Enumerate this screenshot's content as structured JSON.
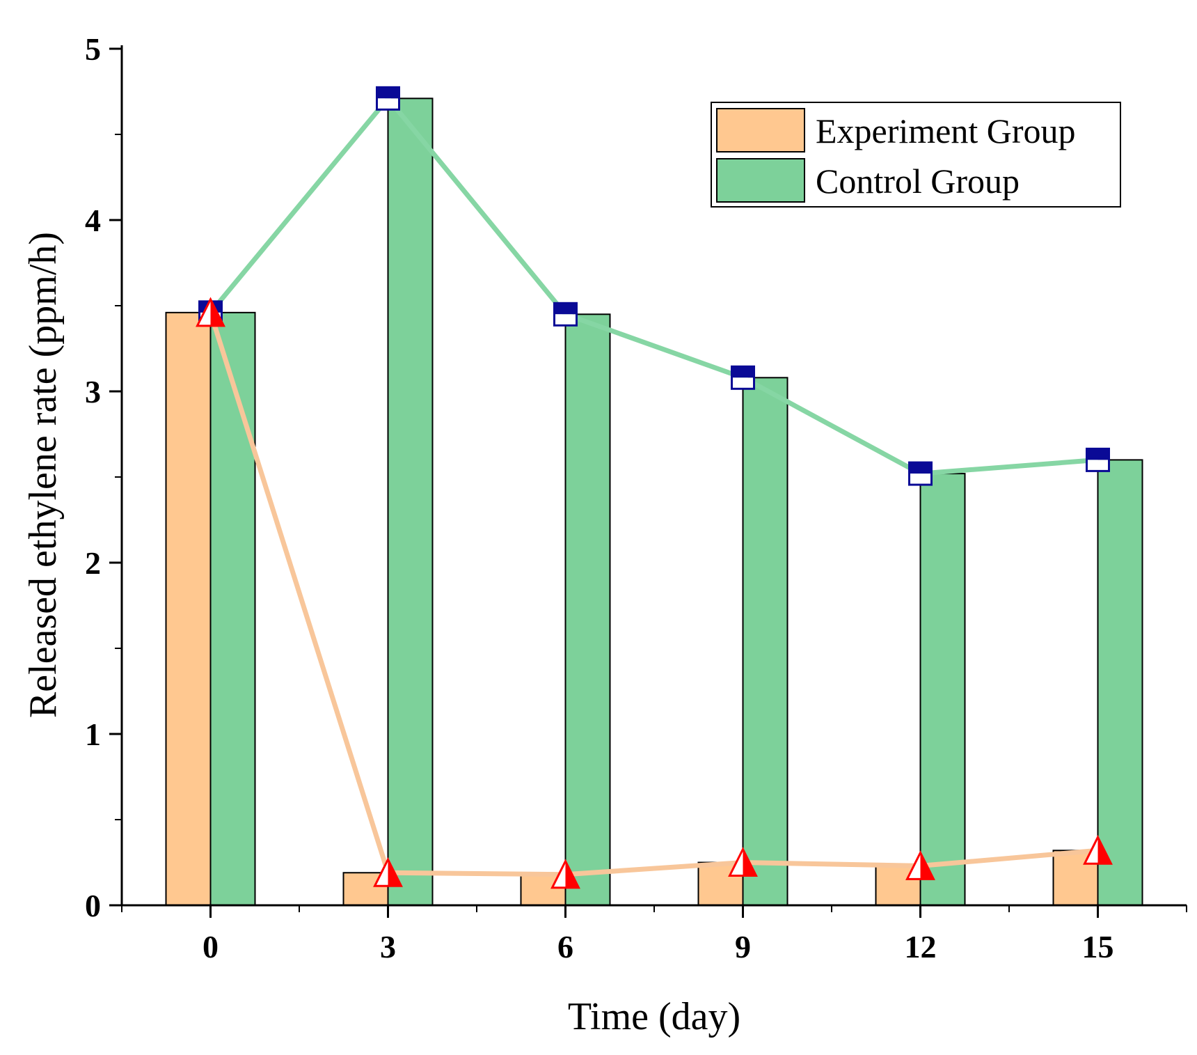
{
  "chart_data": {
    "type": "bar",
    "categories": [
      "0",
      "3",
      "6",
      "9",
      "12",
      "15"
    ],
    "series": [
      {
        "name": "Experiment Group",
        "values": [
          3.46,
          0.19,
          0.18,
          0.25,
          0.23,
          0.32
        ],
        "color": "#ffc890",
        "line_color": "#f8c69a",
        "marker": "triangle",
        "marker_colors": [
          "#ff0000",
          "#ffffff"
        ]
      },
      {
        "name": "Control Group",
        "values": [
          3.46,
          4.71,
          3.45,
          3.08,
          2.52,
          2.6
        ],
        "color": "#7dd19a",
        "line_color": "#86d6a4",
        "marker": "square",
        "marker_colors": [
          "#0a0a96",
          "#ffffff"
        ]
      }
    ],
    "xlabel": "Time (day)",
    "ylabel": "Released ethylene rate (ppm/h)",
    "yticks": [
      "0",
      "1",
      "2",
      "3",
      "4",
      "5"
    ],
    "ylim": [
      0,
      5
    ],
    "grid": false,
    "legend_position": "top-right"
  }
}
